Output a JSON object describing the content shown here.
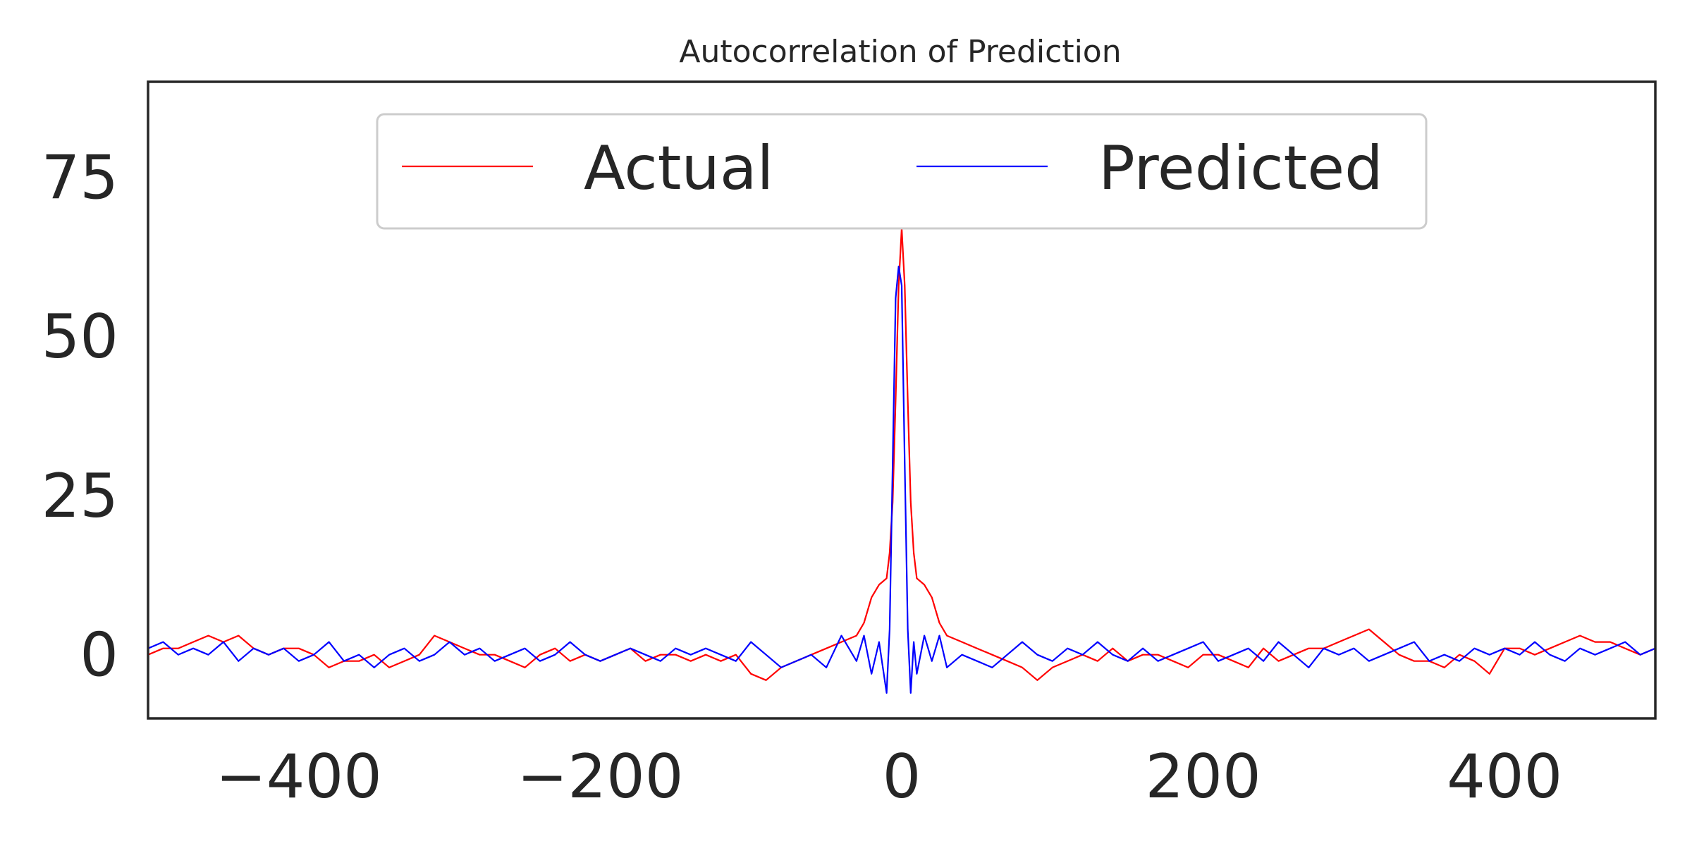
{
  "chart_data": {
    "type": "line",
    "title": "Autocorrelation of Prediction",
    "xlabel": "",
    "ylabel": "",
    "xlim": [
      -500,
      500
    ],
    "ylim": [
      -10,
      90
    ],
    "xticks": [
      -400,
      -200,
      0,
      200,
      400
    ],
    "yticks": [
      0,
      25,
      50,
      75
    ],
    "xtick_labels": [
      "−400",
      "−200",
      "0",
      "200",
      "400"
    ],
    "ytick_labels": [
      "0",
      "25",
      "50",
      "75"
    ],
    "grid": false,
    "legend_position": "upper center",
    "legend_columns": 2,
    "series": [
      {
        "name": "Actual",
        "color": "#ff0000",
        "x": [
          -500,
          -490,
          -480,
          -470,
          -460,
          -450,
          -440,
          -430,
          -420,
          -410,
          -400,
          -390,
          -380,
          -370,
          -360,
          -350,
          -340,
          -330,
          -320,
          -310,
          -300,
          -290,
          -280,
          -270,
          -260,
          -250,
          -240,
          -230,
          -220,
          -210,
          -200,
          -190,
          -180,
          -170,
          -160,
          -150,
          -140,
          -130,
          -120,
          -110,
          -100,
          -90,
          -80,
          -70,
          -60,
          -50,
          -40,
          -30,
          -25,
          -20,
          -15,
          -10,
          -8,
          -6,
          -4,
          -2,
          0,
          2,
          4,
          6,
          8,
          10,
          15,
          20,
          25,
          30,
          40,
          50,
          60,
          70,
          80,
          90,
          100,
          110,
          120,
          130,
          140,
          150,
          160,
          170,
          180,
          190,
          200,
          210,
          220,
          230,
          240,
          250,
          260,
          270,
          280,
          290,
          300,
          310,
          320,
          330,
          340,
          350,
          360,
          370,
          380,
          390,
          400,
          410,
          420,
          430,
          440,
          450,
          460,
          470,
          480,
          490,
          500
        ],
        "y": [
          0,
          1,
          1,
          2,
          3,
          2,
          3,
          1,
          0,
          1,
          1,
          0,
          -2,
          -1,
          -1,
          0,
          -2,
          -1,
          0,
          3,
          2,
          1,
          0,
          0,
          -1,
          -2,
          0,
          1,
          -1,
          0,
          -1,
          0,
          1,
          -1,
          0,
          0,
          -1,
          0,
          -1,
          0,
          -3,
          -4,
          -2,
          -1,
          0,
          1,
          2,
          3,
          5,
          9,
          11,
          12,
          16,
          24,
          40,
          58,
          67,
          58,
          40,
          24,
          16,
          12,
          11,
          9,
          5,
          3,
          2,
          1,
          0,
          -1,
          -2,
          -4,
          -2,
          -1,
          0,
          -1,
          1,
          -1,
          0,
          0,
          -1,
          -2,
          0,
          0,
          -1,
          -2,
          1,
          -1,
          0,
          1,
          1,
          2,
          3,
          4,
          2,
          0,
          -1,
          -1,
          -2,
          0,
          -1,
          -3,
          1,
          1,
          0,
          1,
          2,
          3,
          2,
          2,
          1,
          0,
          1
        ]
      },
      {
        "name": "Predicted",
        "color": "#0000ff",
        "x": [
          -500,
          -490,
          -480,
          -470,
          -460,
          -450,
          -440,
          -430,
          -420,
          -410,
          -400,
          -390,
          -380,
          -370,
          -360,
          -350,
          -340,
          -330,
          -320,
          -310,
          -300,
          -290,
          -280,
          -270,
          -260,
          -250,
          -240,
          -230,
          -220,
          -210,
          -200,
          -190,
          -180,
          -170,
          -160,
          -150,
          -140,
          -130,
          -120,
          -110,
          -100,
          -90,
          -80,
          -70,
          -60,
          -50,
          -40,
          -30,
          -25,
          -20,
          -15,
          -10,
          -8,
          -6,
          -4,
          -2,
          0,
          2,
          4,
          6,
          8,
          10,
          15,
          20,
          25,
          30,
          40,
          50,
          60,
          70,
          80,
          90,
          100,
          110,
          120,
          130,
          140,
          150,
          160,
          170,
          180,
          190,
          200,
          210,
          220,
          230,
          240,
          250,
          260,
          270,
          280,
          290,
          300,
          310,
          320,
          330,
          340,
          350,
          360,
          370,
          380,
          390,
          400,
          410,
          420,
          430,
          440,
          450,
          460,
          470,
          480,
          490,
          500
        ],
        "y": [
          1,
          2,
          0,
          1,
          0,
          2,
          -1,
          1,
          0,
          1,
          -1,
          0,
          2,
          -1,
          0,
          -2,
          0,
          1,
          -1,
          0,
          2,
          0,
          1,
          -1,
          0,
          1,
          -1,
          0,
          2,
          0,
          -1,
          0,
          1,
          0,
          -1,
          1,
          0,
          1,
          0,
          -1,
          2,
          0,
          -2,
          -1,
          0,
          -2,
          3,
          -1,
          3,
          -3,
          2,
          -6,
          4,
          30,
          56,
          61,
          58,
          30,
          4,
          -6,
          2,
          -3,
          3,
          -1,
          3,
          -2,
          0,
          -1,
          -2,
          0,
          2,
          0,
          -1,
          1,
          0,
          2,
          0,
          -1,
          1,
          -1,
          0,
          1,
          2,
          -1,
          0,
          1,
          -1,
          2,
          0,
          -2,
          1,
          0,
          1,
          -1,
          0,
          1,
          2,
          -1,
          0,
          -1,
          1,
          0,
          1,
          0,
          2,
          0,
          -1,
          1,
          0,
          1,
          2,
          0,
          1
        ]
      }
    ]
  },
  "colors": {
    "axes_edge": "#262626",
    "legend_edge": "#cccccc",
    "text": "#262626",
    "background": "#ffffff"
  }
}
